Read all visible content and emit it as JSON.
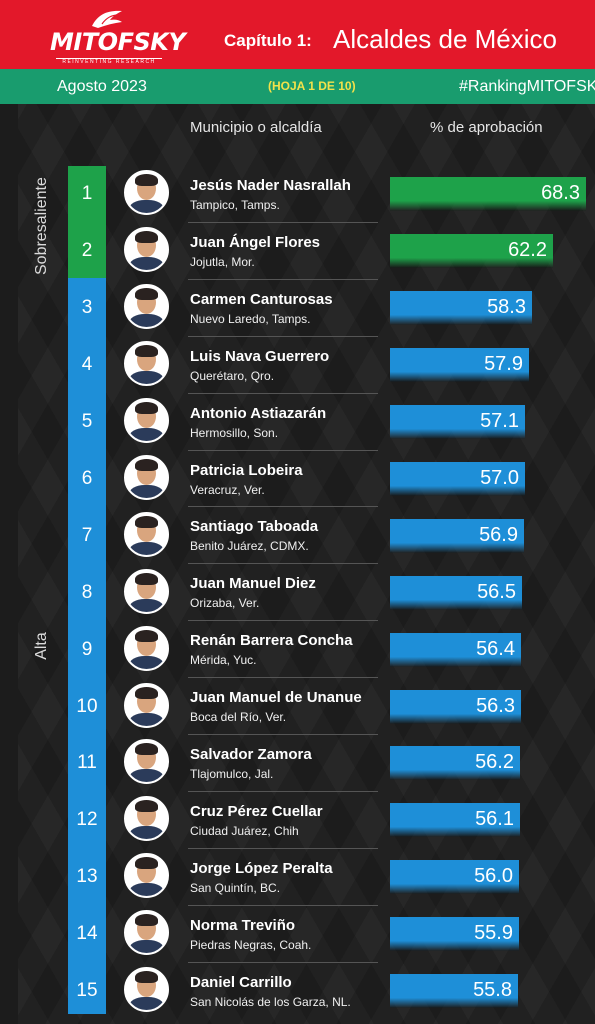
{
  "header": {
    "brand": "MITOFSKY",
    "brand_sub": "REINVENTING RESEARCH",
    "chapter": "Capítulo 1:",
    "title": "Alcaldes de México",
    "date": "Agosto 2023",
    "sheet": "(HOJA 1 DE 10)",
    "hashtag": "#RankingMITOFSKY"
  },
  "colors": {
    "header_red": "#e3182a",
    "header_green": "#199c6e",
    "sobresaliente": "#1ea24a",
    "alta": "#1e8fd8",
    "background": "#1f1f1f"
  },
  "chart_data": {
    "type": "bar",
    "orientation": "horizontal",
    "column_headers": [
      "Municipio o alcaldía",
      "% de aprobación"
    ],
    "categories_groups": [
      {
        "label": "Sobresaliente",
        "ranks": [
          1,
          2
        ],
        "color": "#1ea24a"
      },
      {
        "label": "Alta",
        "ranks": [
          3,
          15
        ],
        "color": "#1e8fd8"
      }
    ],
    "rows": [
      {
        "rank": "1",
        "name": "Jesús Nader Nasrallah",
        "city": "Tampico, Tamps.",
        "value": 68.3,
        "label": "68.3",
        "group": "Sobresaliente"
      },
      {
        "rank": "2",
        "name": "Juan Ángel Flores",
        "city": "Jojutla, Mor.",
        "value": 62.2,
        "label": "62.2",
        "group": "Sobresaliente"
      },
      {
        "rank": "3",
        "name": "Carmen Canturosas",
        "city": "Nuevo Laredo, Tamps.",
        "value": 58.3,
        "label": "58.3",
        "group": "Alta"
      },
      {
        "rank": "4",
        "name": "Luis Nava Guerrero",
        "city": "Querétaro, Qro.",
        "value": 57.9,
        "label": "57.9",
        "group": "Alta"
      },
      {
        "rank": "5",
        "name": "Antonio Astiazarán",
        "city": "Hermosillo, Son.",
        "value": 57.1,
        "label": "57.1",
        "group": "Alta"
      },
      {
        "rank": "6",
        "name": "Patricia Lobeira",
        "city": "Veracruz, Ver.",
        "value": 57.0,
        "label": "57.0",
        "group": "Alta"
      },
      {
        "rank": "7",
        "name": "Santiago Taboada",
        "city": "Benito Juárez, CDMX.",
        "value": 56.9,
        "label": "56.9",
        "group": "Alta"
      },
      {
        "rank": "8",
        "name": "Juan Manuel Diez",
        "city": "Orizaba, Ver.",
        "value": 56.5,
        "label": "56.5",
        "group": "Alta"
      },
      {
        "rank": "9",
        "name": "Renán Barrera Concha",
        "city": "Mérida, Yuc.",
        "value": 56.4,
        "label": "56.4",
        "group": "Alta"
      },
      {
        "rank": "10",
        "name": "Juan Manuel de Unanue",
        "city": "Boca del Río, Ver.",
        "value": 56.3,
        "label": "56.3",
        "group": "Alta"
      },
      {
        "rank": "11",
        "name": "Salvador Zamora",
        "city": "Tlajomulco, Jal.",
        "value": 56.2,
        "label": "56.2",
        "group": "Alta"
      },
      {
        "rank": "12",
        "name": "Cruz Pérez Cuellar",
        "city": "Ciudad Juárez, Chih",
        "value": 56.1,
        "label": "56.1",
        "group": "Alta"
      },
      {
        "rank": "13",
        "name": "Jorge López Peralta",
        "city": "San Quintín, BC.",
        "value": 56.0,
        "label": "56.0",
        "group": "Alta"
      },
      {
        "rank": "14",
        "name": "Norma Treviño",
        "city": "Piedras Negras, Coah.",
        "value": 55.9,
        "label": "55.9",
        "group": "Alta"
      },
      {
        "rank": "15",
        "name": "Daniel Carrillo",
        "city": "San Nicolás de los Garza, NL.",
        "value": 55.8,
        "label": "55.8",
        "group": "Alta"
      }
    ],
    "title": "Alcaldes de México",
    "xlabel": "",
    "ylabel": "",
    "grid": false,
    "legend": "none"
  }
}
